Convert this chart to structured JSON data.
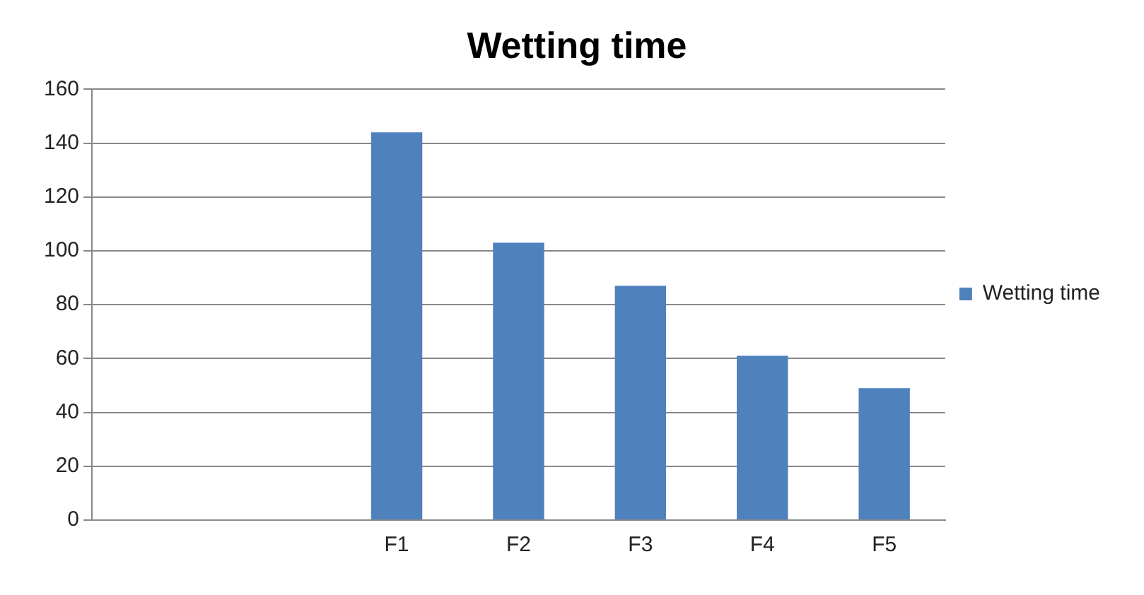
{
  "chart_data": {
    "type": "bar",
    "title": "Wetting time",
    "categories": [
      null,
      null,
      "F1",
      "F2",
      "F3",
      "F4",
      "F5"
    ],
    "series": [
      {
        "name": "Wetting time",
        "color": "#4f81bd",
        "values": [
          null,
          null,
          144,
          103,
          87,
          61,
          49
        ]
      }
    ],
    "ylim": [
      0,
      160
    ],
    "yticks": [
      0,
      20,
      40,
      60,
      80,
      100,
      120,
      140,
      160
    ],
    "grid": "y",
    "legend": "right"
  }
}
